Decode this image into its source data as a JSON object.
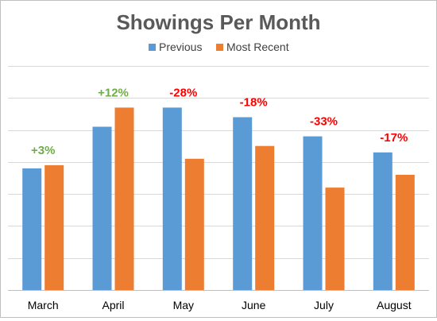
{
  "chart_data": {
    "type": "bar",
    "title": "Showings Per Month",
    "categories": [
      "March",
      "April",
      "May",
      "June",
      "July",
      "August"
    ],
    "series": [
      {
        "name": "Previous",
        "color": "#5b9bd5",
        "values": [
          38,
          51,
          57,
          54,
          48,
          43
        ]
      },
      {
        "name": "Most Recent",
        "color": "#ed7d31",
        "values": [
          39,
          57,
          41,
          45,
          32,
          36
        ]
      }
    ],
    "annotations": [
      {
        "text": "+3%",
        "color": "#70ad47"
      },
      {
        "text": "+12%",
        "color": "#70ad47"
      },
      {
        "text": "-28%",
        "color": "#ff0000"
      },
      {
        "text": "-18%",
        "color": "#ff0000"
      },
      {
        "text": "-33%",
        "color": "#ff0000"
      },
      {
        "text": "-17%",
        "color": "#ff0000"
      }
    ],
    "ylim": [
      0,
      70
    ],
    "y_ticks": [
      0,
      10,
      20,
      30,
      40,
      50,
      60,
      70
    ],
    "y_tick_labels_shown": false,
    "grid": true,
    "legend_position": "top"
  }
}
